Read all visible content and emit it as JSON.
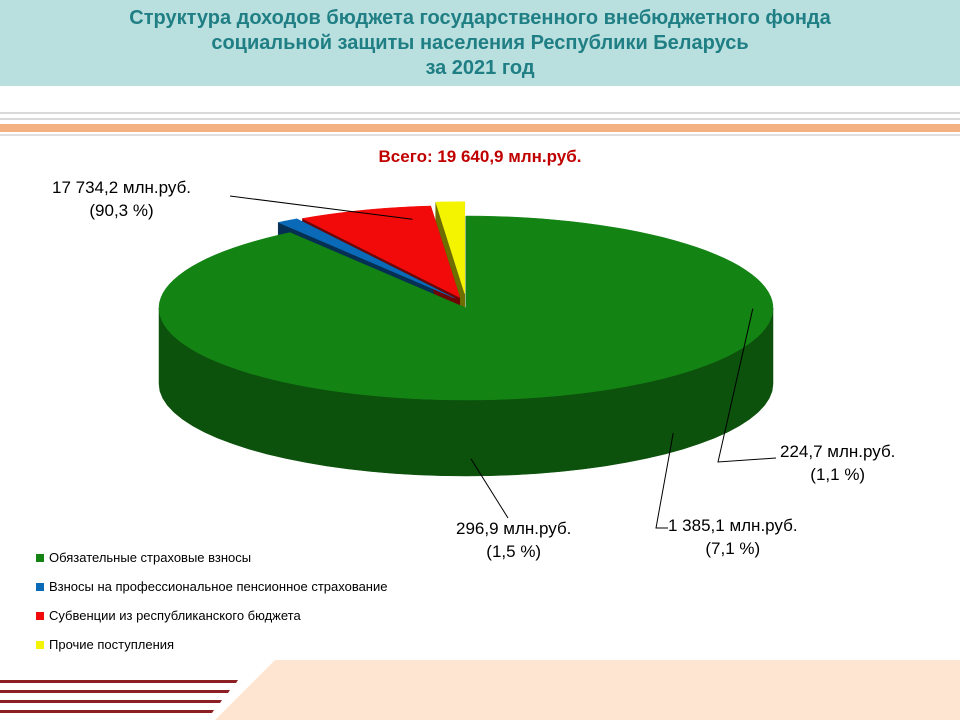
{
  "title": {
    "line1": "Структура  доходов бюджета государственного внебюджетного фонда",
    "line2": "социальной защиты населения Республики Беларусь",
    "line3": "за 2021 год"
  },
  "total_label": "Всего: 19 640,9 млн.руб.",
  "chart_data": {
    "type": "pie",
    "variant": "3d-exploded",
    "total": 19640.9,
    "unit": "млн.руб.",
    "legend_position": "bottom-left",
    "slices": [
      {
        "name": "Обязательные страховые взносы",
        "value": 17734.2,
        "percent": 90.3,
        "value_label": "17 734,2 млн.руб.",
        "percent_label": "(90,3 %)",
        "color": "#138313"
      },
      {
        "name": "Взносы на профессиональное  пенсионное  страхование",
        "value": 224.7,
        "percent": 1.1,
        "value_label": "224,7 млн.руб.",
        "percent_label": "(1,1 %)",
        "color": "#0b6ab8"
      },
      {
        "name": "Субвенции из республиканского  бюджета",
        "value": 1385.1,
        "percent": 7.1,
        "value_label": "1 385,1 млн.руб.",
        "percent_label": "(7,1 %)",
        "color": "#f20a0a"
      },
      {
        "name": "Прочие  поступления",
        "value": 296.9,
        "percent": 1.5,
        "value_label": "296,9 млн.руб.",
        "percent_label": "(1,5 %)",
        "color": "#f4f400"
      }
    ]
  }
}
